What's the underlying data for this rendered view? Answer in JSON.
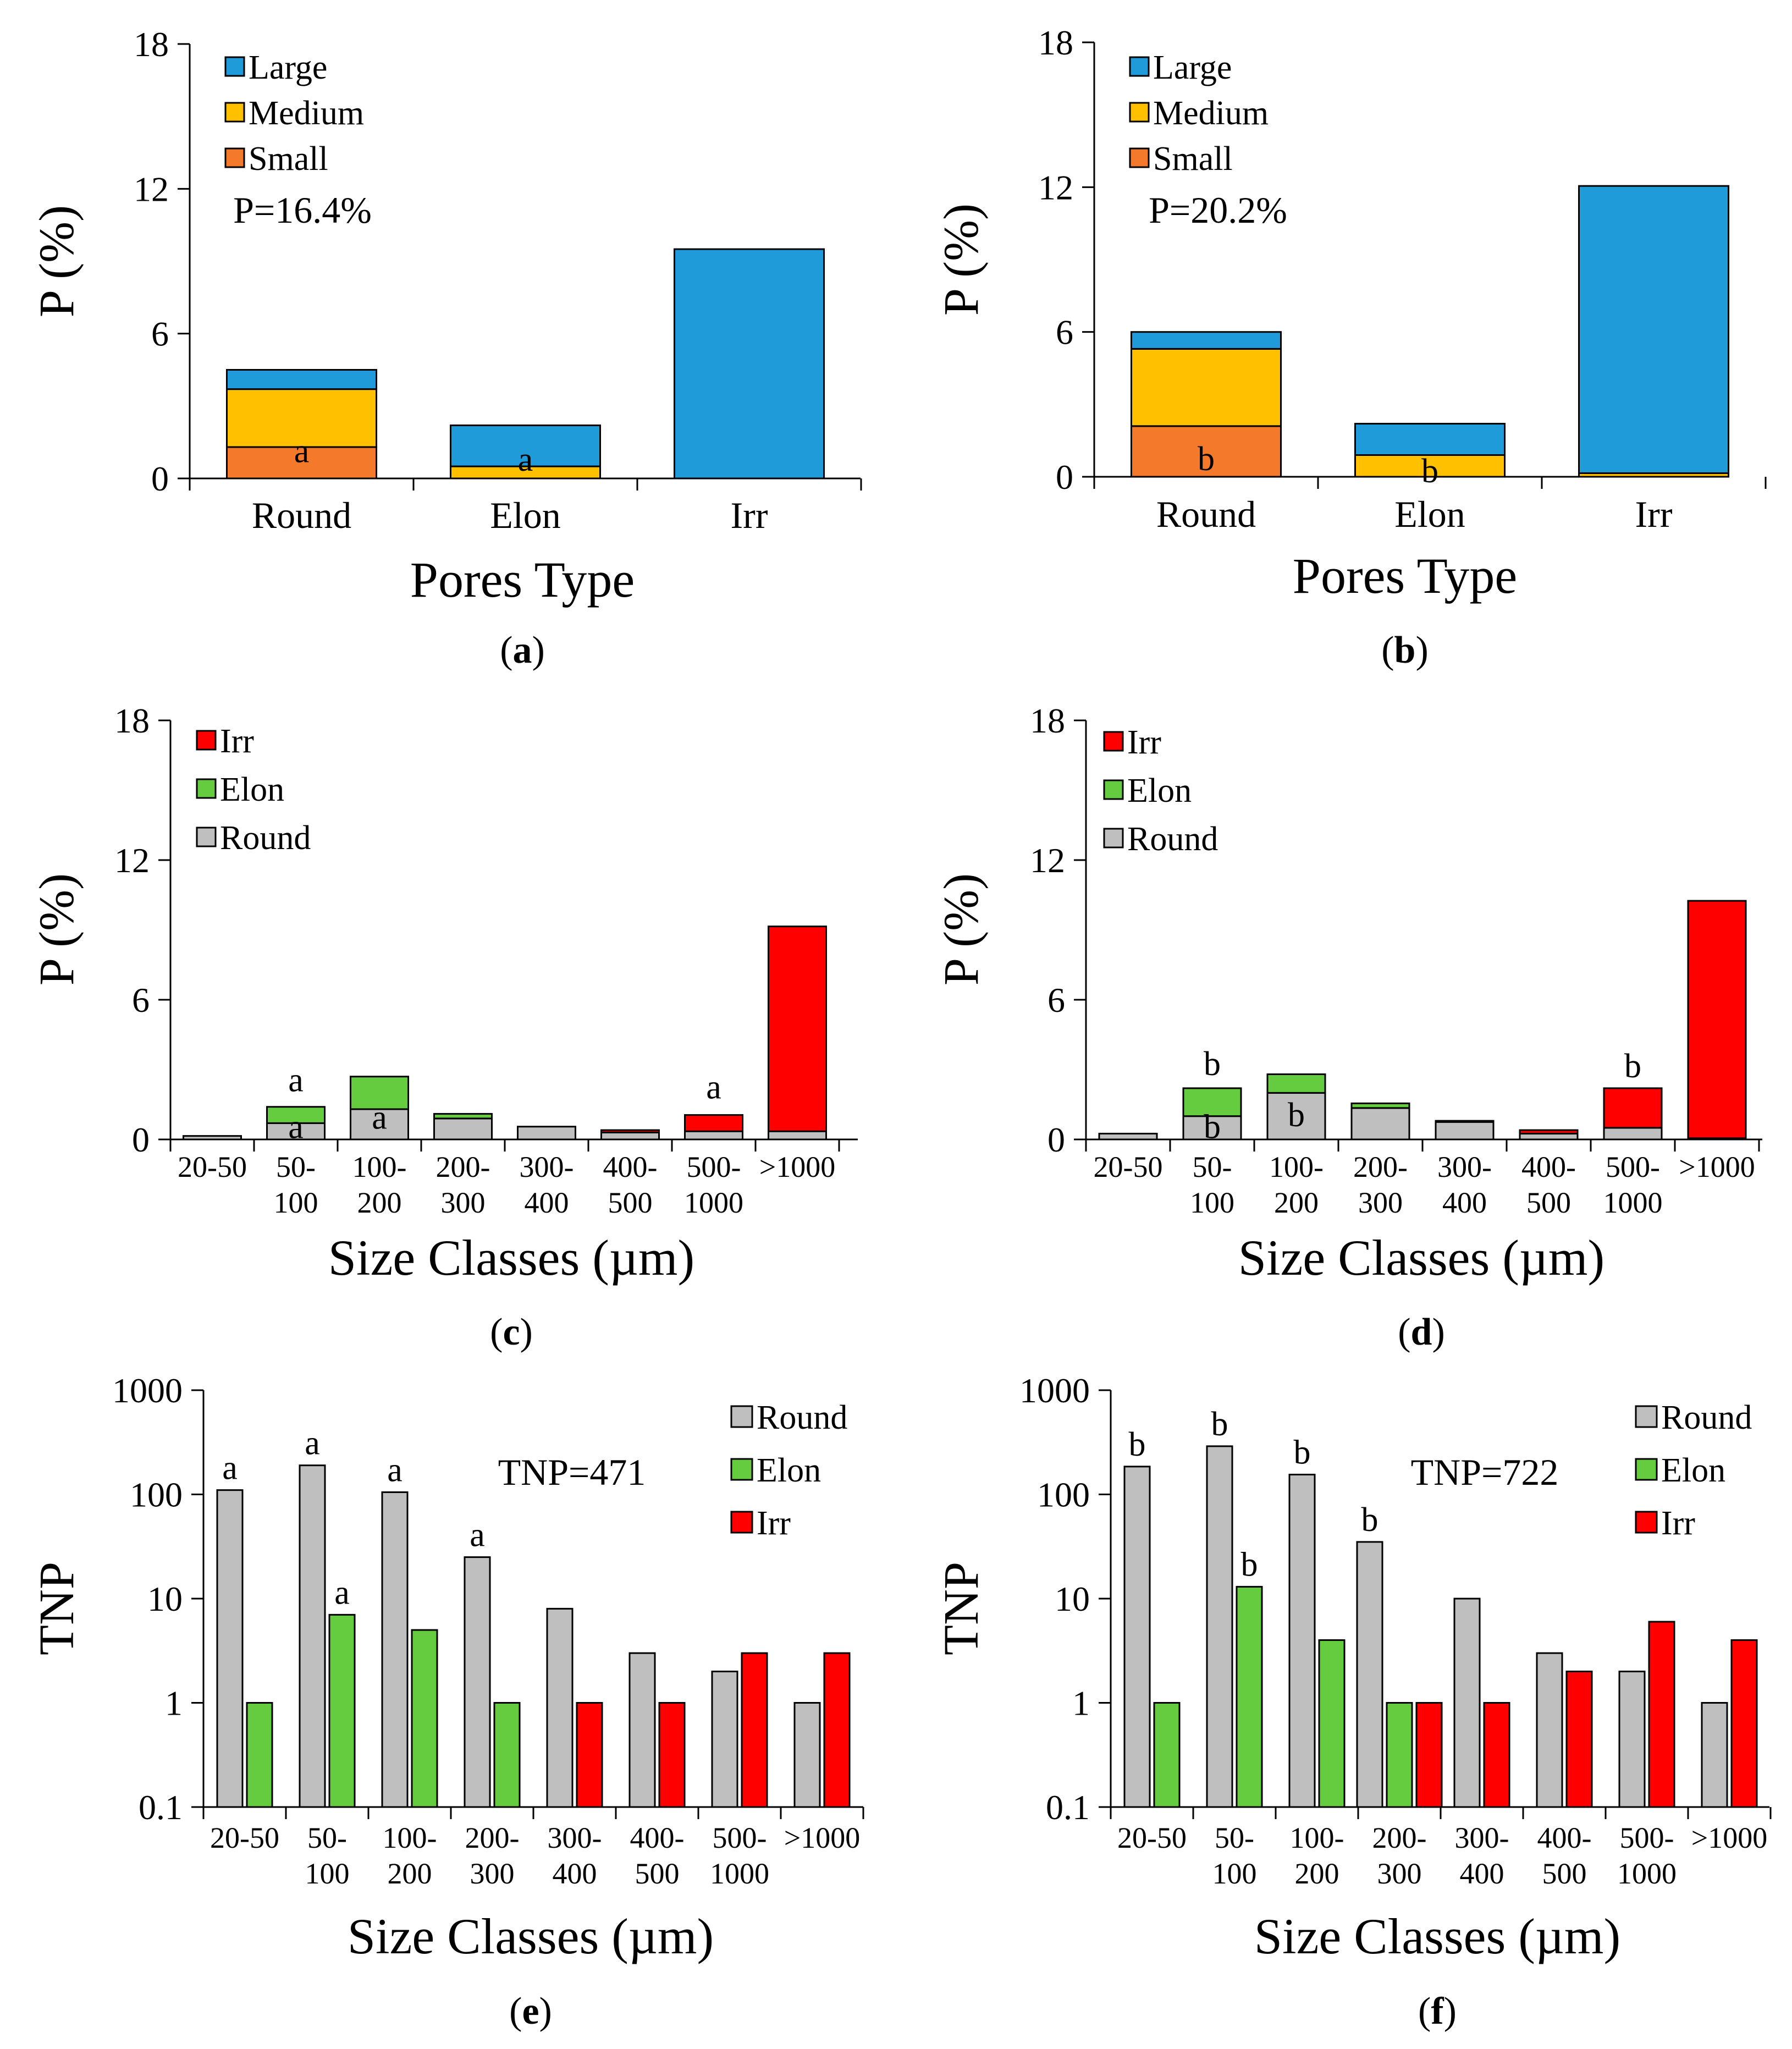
{
  "colors": {
    "large": "#1F9BD9",
    "medium": "#FFC000",
    "small": "#F5792A",
    "round": "#BFBFBF",
    "elon": "#66CC3F",
    "irr": "#FF0000",
    "axis": "#000000"
  },
  "chart_data": [
    {
      "id": "a",
      "type": "bar",
      "stacked": true,
      "panel_label": "a",
      "title": "",
      "ylabel": "P (%)",
      "xlabel": "Pores Type",
      "ylim": [
        0,
        18
      ],
      "yticks": [
        "0",
        "6",
        "12",
        "18"
      ],
      "ytick_values": [
        0,
        6,
        12,
        18
      ],
      "annotation": "P=16.4%",
      "categories": [
        "Round",
        "Elon",
        "Irr"
      ],
      "series": [
        {
          "name": "Small",
          "color_key": "small",
          "values": [
            1.3,
            0.0,
            0.0
          ]
        },
        {
          "name": "Medium",
          "color_key": "medium",
          "values": [
            2.4,
            0.5,
            0.0
          ]
        },
        {
          "name": "Large",
          "color_key": "large",
          "values": [
            0.8,
            1.7,
            9.5
          ]
        }
      ],
      "legend": [
        "Large",
        "Medium",
        "Small"
      ],
      "legend_keys": [
        "large",
        "medium",
        "small"
      ],
      "bar_labels": [
        {
          "text": "a",
          "category": 0,
          "value": 0.9
        },
        {
          "text": "a",
          "category": 1,
          "value": 0.55
        }
      ]
    },
    {
      "id": "b",
      "type": "bar",
      "stacked": true,
      "panel_label": "b",
      "title": "",
      "ylabel": "P (%)",
      "xlabel": "Pores Type",
      "ylim": [
        0,
        18
      ],
      "yticks": [
        "0",
        "6",
        "12",
        "18"
      ],
      "ytick_values": [
        0,
        6,
        12,
        18
      ],
      "annotation": "P=20.2%",
      "categories": [
        "Round",
        "Elon",
        "Irr"
      ],
      "series": [
        {
          "name": "Small",
          "color_key": "small",
          "values": [
            2.1,
            0.0,
            0.0
          ]
        },
        {
          "name": "Medium",
          "color_key": "medium",
          "values": [
            3.2,
            0.9,
            0.15
          ]
        },
        {
          "name": "Large",
          "color_key": "large",
          "values": [
            0.7,
            1.3,
            11.9
          ]
        }
      ],
      "legend": [
        "Large",
        "Medium",
        "Small"
      ],
      "legend_keys": [
        "large",
        "medium",
        "small"
      ],
      "bar_labels": [
        {
          "text": "b",
          "category": 0,
          "value": 0.5
        },
        {
          "text": "b",
          "category": 1,
          "value": 0.0
        }
      ]
    },
    {
      "id": "c",
      "type": "bar",
      "stacked": true,
      "panel_label": "c",
      "title": "",
      "ylabel": "P (%)",
      "xlabel": "Size Classes (µm)",
      "ylim": [
        0,
        18
      ],
      "yticks": [
        "0",
        "6",
        "12",
        "18"
      ],
      "ytick_values": [
        0,
        6,
        12,
        18
      ],
      "categories": [
        [
          "20-50"
        ],
        [
          "50-",
          "100"
        ],
        [
          "100-",
          "200"
        ],
        [
          "200-",
          "300"
        ],
        [
          "300-",
          "400"
        ],
        [
          "400-",
          "500"
        ],
        [
          "500-",
          "1000"
        ],
        [
          ">1000"
        ]
      ],
      "series": [
        {
          "name": "Round",
          "color_key": "round",
          "values": [
            0.15,
            0.7,
            1.3,
            0.9,
            0.55,
            0.3,
            0.35,
            0.35
          ]
        },
        {
          "name": "Elon",
          "color_key": "elon",
          "values": [
            0.0,
            0.7,
            1.4,
            0.2,
            0.0,
            0.0,
            0.0,
            0.0
          ]
        },
        {
          "name": "Irr",
          "color_key": "irr",
          "values": [
            0.0,
            0.0,
            0.0,
            0.0,
            0.0,
            0.1,
            0.7,
            8.8
          ]
        }
      ],
      "legend": [
        "Irr",
        "Elon",
        "Round"
      ],
      "legend_keys": [
        "irr",
        "elon",
        "round"
      ],
      "bar_labels": [
        {
          "text": "a",
          "category": 1,
          "value": 2.3
        },
        {
          "text": "a",
          "category": 1,
          "value": 0.3
        },
        {
          "text": "a",
          "category": 2,
          "value": 0.7
        },
        {
          "text": "a",
          "category": 6,
          "value": 2.0
        }
      ]
    },
    {
      "id": "d",
      "type": "bar",
      "stacked": true,
      "panel_label": "d",
      "title": "",
      "ylabel": "P (%)",
      "xlabel": "Size Classes (µm)",
      "ylim": [
        0,
        18
      ],
      "yticks": [
        "0",
        "6",
        "12",
        "18"
      ],
      "ytick_values": [
        0,
        6,
        12,
        18
      ],
      "categories": [
        [
          "20-50"
        ],
        [
          "50-",
          "100"
        ],
        [
          "100-",
          "200"
        ],
        [
          "200-",
          "300"
        ],
        [
          "300-",
          "400"
        ],
        [
          "400-",
          "500"
        ],
        [
          "500-",
          "1000"
        ],
        [
          ">1000"
        ]
      ],
      "series": [
        {
          "name": "Round",
          "color_key": "round",
          "values": [
            0.25,
            1.0,
            2.0,
            1.35,
            0.75,
            0.25,
            0.5,
            0.05
          ]
        },
        {
          "name": "Elon",
          "color_key": "elon",
          "values": [
            0.0,
            1.2,
            0.8,
            0.2,
            0.05,
            0.0,
            0.0,
            0.0
          ]
        },
        {
          "name": "Irr",
          "color_key": "irr",
          "values": [
            0.0,
            0.0,
            0.0,
            0.0,
            0.0,
            0.15,
            1.7,
            10.2
          ]
        }
      ],
      "legend": [
        "Irr",
        "Elon",
        "Round"
      ],
      "legend_keys": [
        "irr",
        "elon",
        "round"
      ],
      "bar_labels": [
        {
          "text": "b",
          "category": 1,
          "value": 3.0
        },
        {
          "text": "b",
          "category": 1,
          "value": 0.3
        },
        {
          "text": "b",
          "category": 2,
          "value": 0.8
        },
        {
          "text": "b",
          "category": 6,
          "value": 2.9
        }
      ]
    },
    {
      "id": "e",
      "type": "bar",
      "stacked": false,
      "log_scale": true,
      "panel_label": "e",
      "title": "",
      "ylabel": "TNP",
      "xlabel": "Size Classes (µm)",
      "ylim": [
        0.1,
        1000
      ],
      "yticks": [
        "0.1",
        "1",
        "10",
        "100",
        "1000"
      ],
      "ytick_values": [
        0.1,
        1,
        10,
        100,
        1000
      ],
      "annotation": "TNP=471",
      "categories": [
        [
          "20-50"
        ],
        [
          "50-",
          "100"
        ],
        [
          "100-",
          "200"
        ],
        [
          "200-",
          "300"
        ],
        [
          "300-",
          "400"
        ],
        [
          "400-",
          "500"
        ],
        [
          "500-",
          "1000"
        ],
        [
          ">1000"
        ]
      ],
      "series": [
        {
          "name": "Round",
          "color_key": "round",
          "values": [
            110,
            190,
            105,
            25,
            8,
            3,
            2,
            1
          ]
        },
        {
          "name": "Elon",
          "color_key": "elon",
          "values": [
            1,
            7,
            5,
            1,
            null,
            null,
            null,
            null
          ]
        },
        {
          "name": "Irr",
          "color_key": "irr",
          "values": [
            null,
            null,
            null,
            null,
            1,
            1,
            3,
            3
          ]
        }
      ],
      "legend": [
        "Round",
        "Elon",
        "Irr"
      ],
      "legend_keys": [
        "round",
        "elon",
        "irr"
      ],
      "bar_labels": [
        {
          "text": "a",
          "category": 0,
          "series": 0
        },
        {
          "text": "a",
          "category": 1,
          "series": 0
        },
        {
          "text": "a",
          "category": 2,
          "series": 0
        },
        {
          "text": "a",
          "category": 3,
          "series": 0
        },
        {
          "text": "a",
          "category": 1,
          "series": 1
        }
      ]
    },
    {
      "id": "f",
      "type": "bar",
      "stacked": false,
      "log_scale": true,
      "panel_label": "f",
      "title": "",
      "ylabel": "TNP",
      "xlabel": "Size Classes (µm)",
      "ylim": [
        0.1,
        1000
      ],
      "yticks": [
        "0.1",
        "1",
        "10",
        "100",
        "1000"
      ],
      "ytick_values": [
        0.1,
        1,
        10,
        100,
        1000
      ],
      "annotation": "TNP=722",
      "categories": [
        [
          "20-50"
        ],
        [
          "50-",
          "100"
        ],
        [
          "100-",
          "200"
        ],
        [
          "200-",
          "300"
        ],
        [
          "300-",
          "400"
        ],
        [
          "400-",
          "500"
        ],
        [
          "500-",
          "1000"
        ],
        [
          ">1000"
        ]
      ],
      "series": [
        {
          "name": "Round",
          "color_key": "round",
          "values": [
            185,
            290,
            155,
            35,
            10,
            3,
            2,
            1
          ]
        },
        {
          "name": "Elon",
          "color_key": "elon",
          "values": [
            1,
            13,
            4,
            1,
            null,
            null,
            null,
            null
          ]
        },
        {
          "name": "Irr",
          "color_key": "irr",
          "values": [
            null,
            null,
            null,
            1,
            1,
            2,
            6,
            4
          ]
        }
      ],
      "legend": [
        "Round",
        "Elon",
        "Irr"
      ],
      "legend_keys": [
        "round",
        "elon",
        "irr"
      ],
      "bar_labels": [
        {
          "text": "b",
          "category": 0,
          "series": 0
        },
        {
          "text": "b",
          "category": 1,
          "series": 0
        },
        {
          "text": "b",
          "category": 2,
          "series": 0
        },
        {
          "text": "b",
          "category": 3,
          "series": 0
        },
        {
          "text": "b",
          "category": 1,
          "series": 1
        }
      ]
    }
  ]
}
